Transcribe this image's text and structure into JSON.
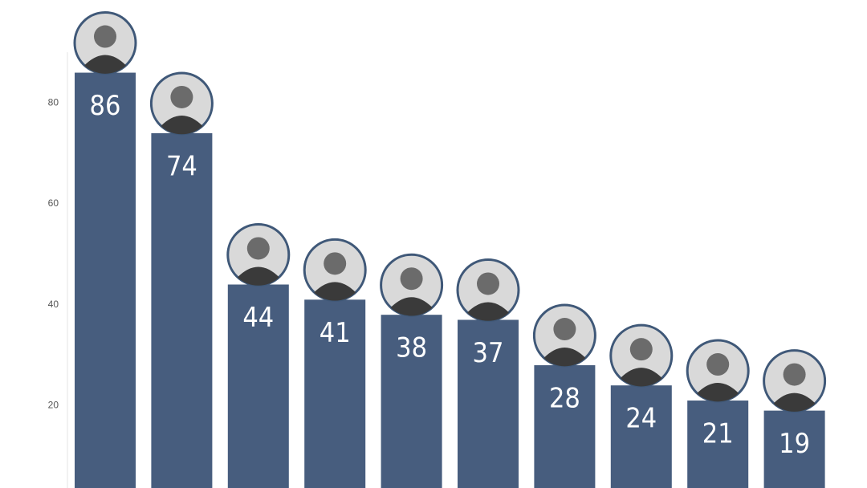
{
  "chart_data": {
    "type": "bar",
    "categories": [
      null,
      null,
      null,
      null,
      null,
      null,
      null,
      null,
      null,
      null
    ],
    "values": [
      86,
      74,
      44,
      41,
      38,
      37,
      28,
      24,
      21,
      19
    ],
    "color": "#475d7e",
    "ylim": [
      0,
      90
    ],
    "yticks": [
      20,
      40,
      60,
      80
    ],
    "grid": false
  }
}
